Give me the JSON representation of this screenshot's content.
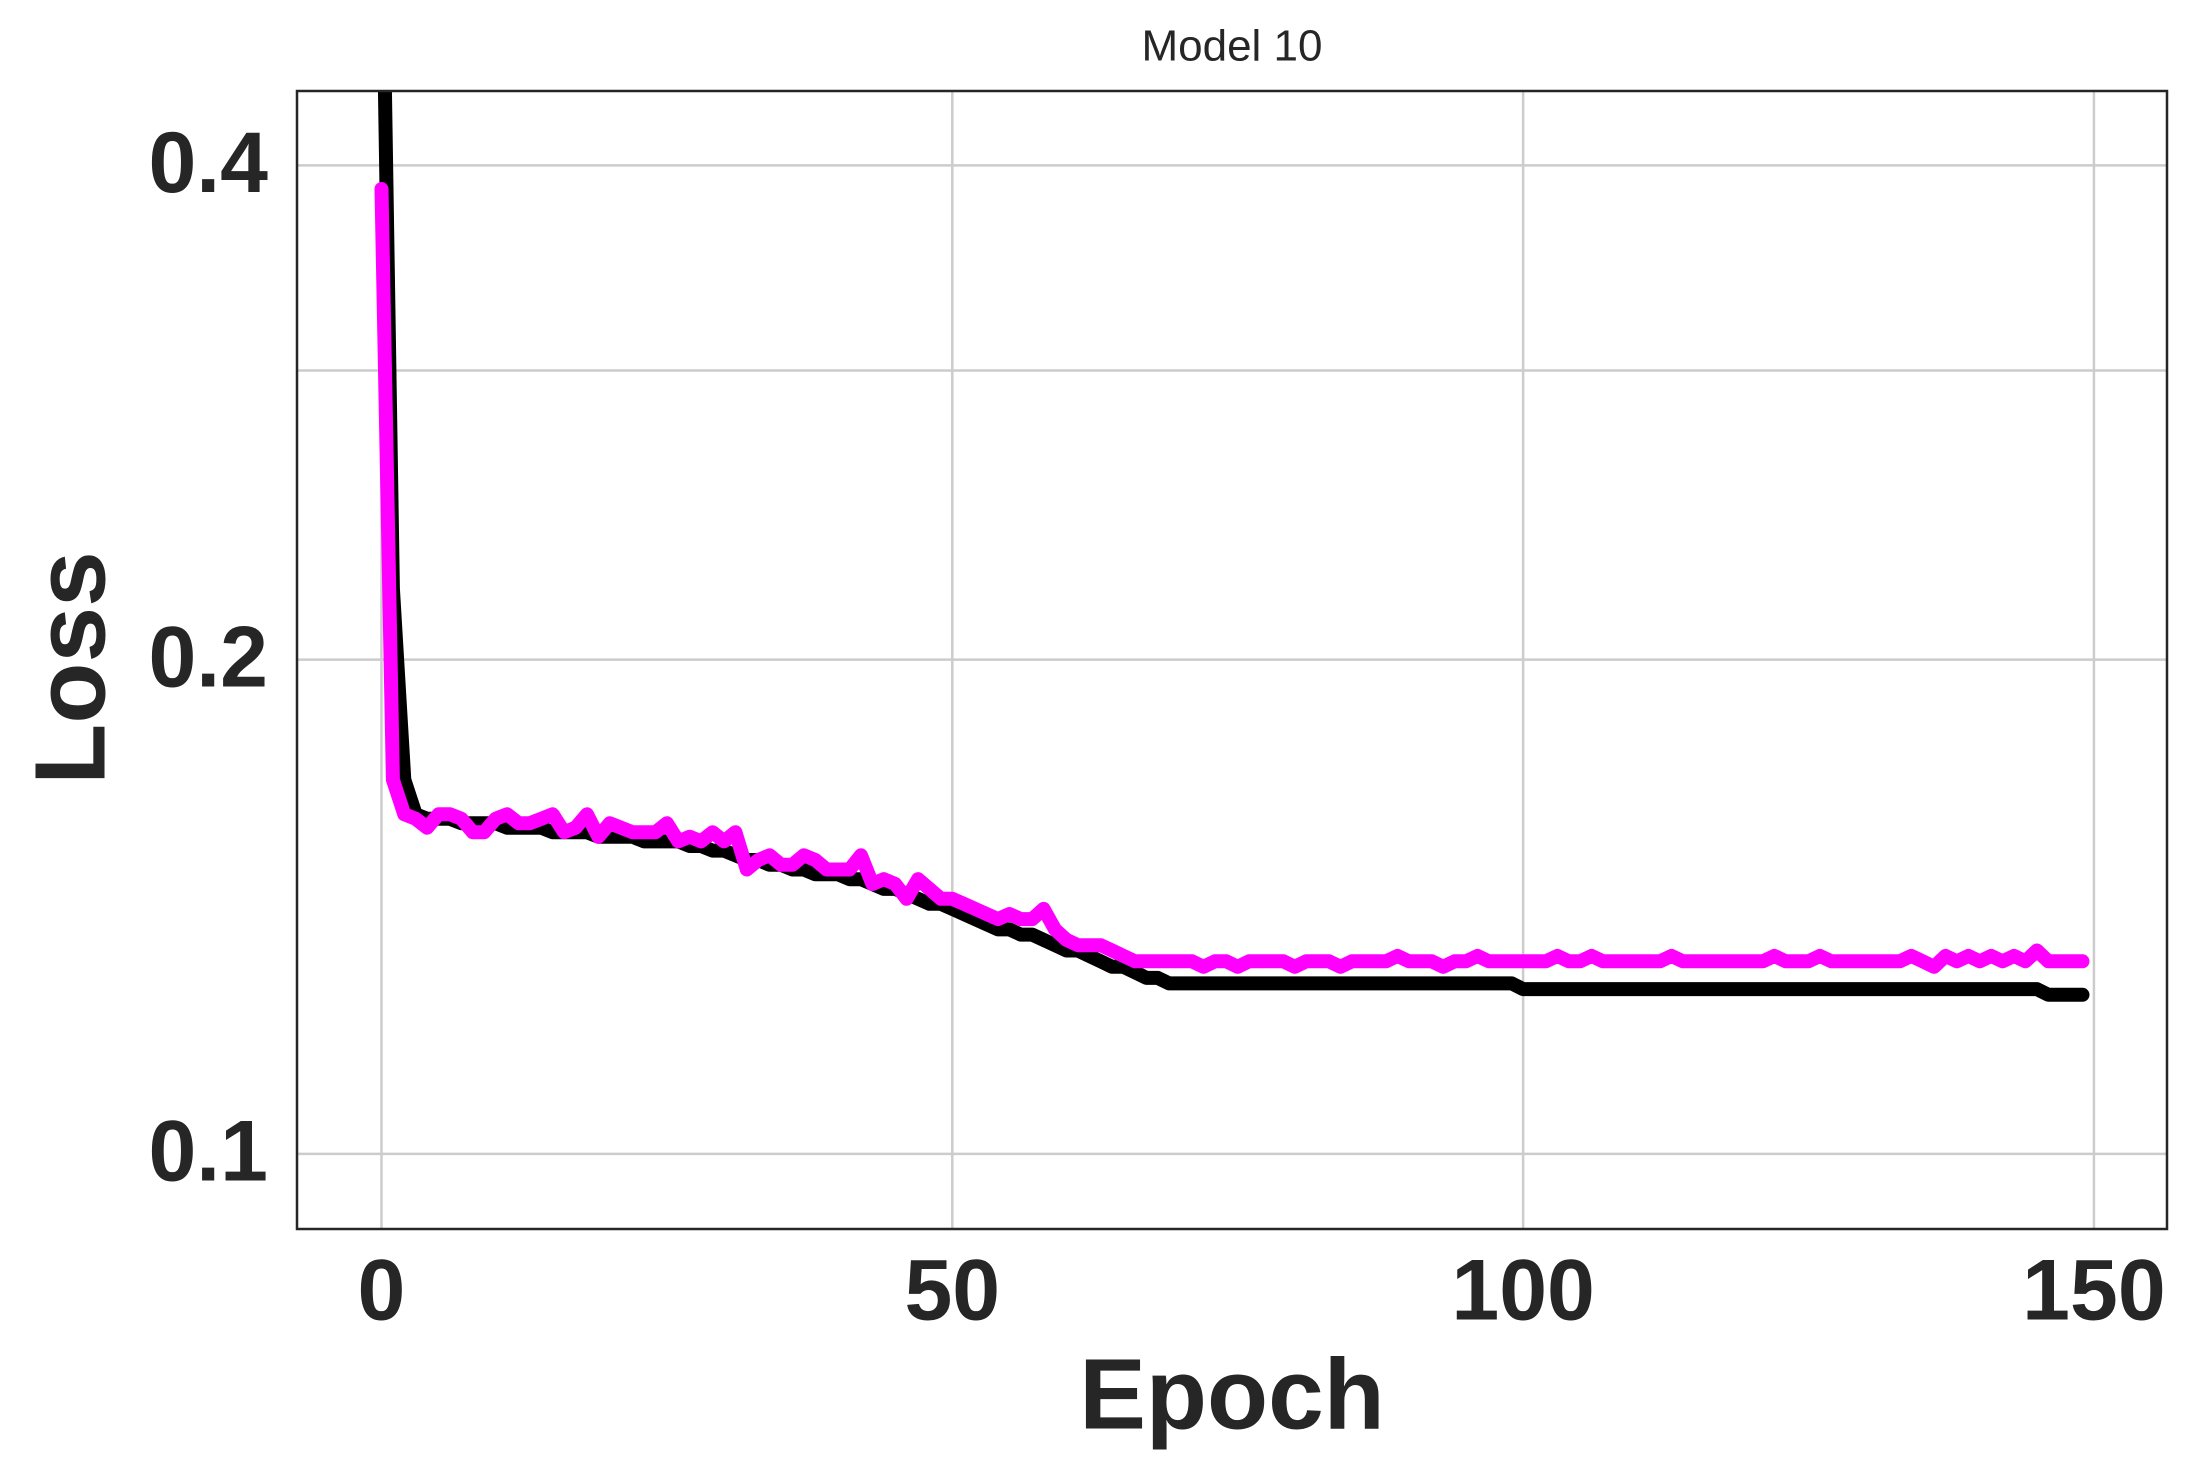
{
  "chart_data": {
    "type": "line",
    "title": "Model 10",
    "xlabel": "Epoch",
    "ylabel": "Loss",
    "yscale": "log",
    "grid": true,
    "xlim": [
      -7.4,
      156.4
    ],
    "xticks": [
      0,
      50,
      100,
      150
    ],
    "ylim": [
      0.09,
      0.444
    ],
    "yticks": [
      0.1,
      0.2,
      0.4
    ],
    "minor_yticks": [
      0.3
    ],
    "series": [
      {
        "color": "#000000",
        "values": [
          0.6,
          0.221,
          0.169,
          0.161,
          0.16,
          0.16,
          0.16,
          0.159,
          0.159,
          0.159,
          0.159,
          0.158,
          0.158,
          0.158,
          0.158,
          0.157,
          0.157,
          0.157,
          0.157,
          0.156,
          0.156,
          0.156,
          0.156,
          0.155,
          0.155,
          0.155,
          0.155,
          0.154,
          0.154,
          0.153,
          0.153,
          0.152,
          0.151,
          0.151,
          0.15,
          0.15,
          0.149,
          0.149,
          0.148,
          0.148,
          0.148,
          0.147,
          0.147,
          0.146,
          0.145,
          0.145,
          0.144,
          0.143,
          0.142,
          0.142,
          0.141,
          0.14,
          0.139,
          0.138,
          0.137,
          0.137,
          0.136,
          0.136,
          0.135,
          0.134,
          0.133,
          0.133,
          0.132,
          0.131,
          0.13,
          0.13,
          0.129,
          0.128,
          0.128,
          0.127,
          0.127,
          0.127,
          0.127,
          0.127,
          0.127,
          0.127,
          0.127,
          0.127,
          0.127,
          0.127,
          0.127,
          0.127,
          0.127,
          0.127,
          0.127,
          0.127,
          0.127,
          0.127,
          0.127,
          0.127,
          0.127,
          0.127,
          0.127,
          0.127,
          0.127,
          0.127,
          0.127,
          0.127,
          0.127,
          0.127,
          0.126,
          0.126,
          0.126,
          0.126,
          0.126,
          0.126,
          0.126,
          0.126,
          0.126,
          0.126,
          0.126,
          0.126,
          0.126,
          0.126,
          0.126,
          0.126,
          0.126,
          0.126,
          0.126,
          0.126,
          0.126,
          0.126,
          0.126,
          0.126,
          0.126,
          0.126,
          0.126,
          0.126,
          0.126,
          0.126,
          0.126,
          0.126,
          0.126,
          0.126,
          0.126,
          0.126,
          0.126,
          0.126,
          0.126,
          0.126,
          0.126,
          0.126,
          0.126,
          0.126,
          0.126,
          0.126,
          0.125,
          0.125,
          0.125,
          0.125
        ]
      },
      {
        "color": "#ff00ff",
        "values": [
          0.387,
          0.169,
          0.161,
          0.16,
          0.158,
          0.161,
          0.161,
          0.16,
          0.157,
          0.157,
          0.16,
          0.161,
          0.159,
          0.159,
          0.16,
          0.161,
          0.157,
          0.158,
          0.161,
          0.156,
          0.159,
          0.158,
          0.157,
          0.157,
          0.157,
          0.159,
          0.155,
          0.156,
          0.155,
          0.157,
          0.155,
          0.157,
          0.149,
          0.151,
          0.152,
          0.15,
          0.15,
          0.152,
          0.151,
          0.149,
          0.149,
          0.149,
          0.152,
          0.146,
          0.147,
          0.146,
          0.143,
          0.147,
          0.145,
          0.143,
          0.143,
          0.142,
          0.141,
          0.14,
          0.139,
          0.14,
          0.139,
          0.139,
          0.141,
          0.137,
          0.135,
          0.134,
          0.134,
          0.134,
          0.133,
          0.132,
          0.131,
          0.131,
          0.131,
          0.131,
          0.131,
          0.131,
          0.13,
          0.131,
          0.131,
          0.13,
          0.131,
          0.131,
          0.131,
          0.131,
          0.13,
          0.131,
          0.131,
          0.131,
          0.13,
          0.131,
          0.131,
          0.131,
          0.131,
          0.132,
          0.131,
          0.131,
          0.131,
          0.13,
          0.131,
          0.131,
          0.132,
          0.131,
          0.131,
          0.131,
          0.131,
          0.131,
          0.131,
          0.132,
          0.131,
          0.131,
          0.132,
          0.131,
          0.131,
          0.131,
          0.131,
          0.131,
          0.131,
          0.132,
          0.131,
          0.131,
          0.131,
          0.131,
          0.131,
          0.131,
          0.131,
          0.131,
          0.132,
          0.131,
          0.131,
          0.131,
          0.132,
          0.131,
          0.131,
          0.131,
          0.131,
          0.131,
          0.131,
          0.131,
          0.132,
          0.131,
          0.13,
          0.132,
          0.131,
          0.132,
          0.131,
          0.132,
          0.131,
          0.132,
          0.131,
          0.133,
          0.131,
          0.131,
          0.131,
          0.131
        ]
      }
    ]
  }
}
